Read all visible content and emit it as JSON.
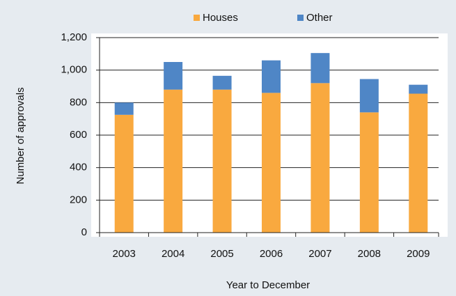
{
  "chart_data": {
    "type": "stacked_bar",
    "x_label": "Year to December",
    "y_label": "Number of approvals",
    "categories": [
      "2003",
      "2004",
      "2005",
      "2006",
      "2007",
      "2008",
      "2009"
    ],
    "series": [
      {
        "name": "Houses",
        "color": "#f9a93f",
        "values": [
          725,
          880,
          880,
          860,
          920,
          740,
          855
        ]
      },
      {
        "name": "Other",
        "color": "#4f86c6",
        "values": [
          75,
          170,
          85,
          200,
          185,
          205,
          55
        ]
      }
    ],
    "ylim": [
      0,
      1200
    ],
    "yticks": [
      0,
      200,
      400,
      600,
      800,
      {
        "value": 1000,
        "label": "1,000"
      },
      {
        "value": 1200,
        "label": "1,200"
      }
    ],
    "grid": true,
    "legend": "top"
  }
}
